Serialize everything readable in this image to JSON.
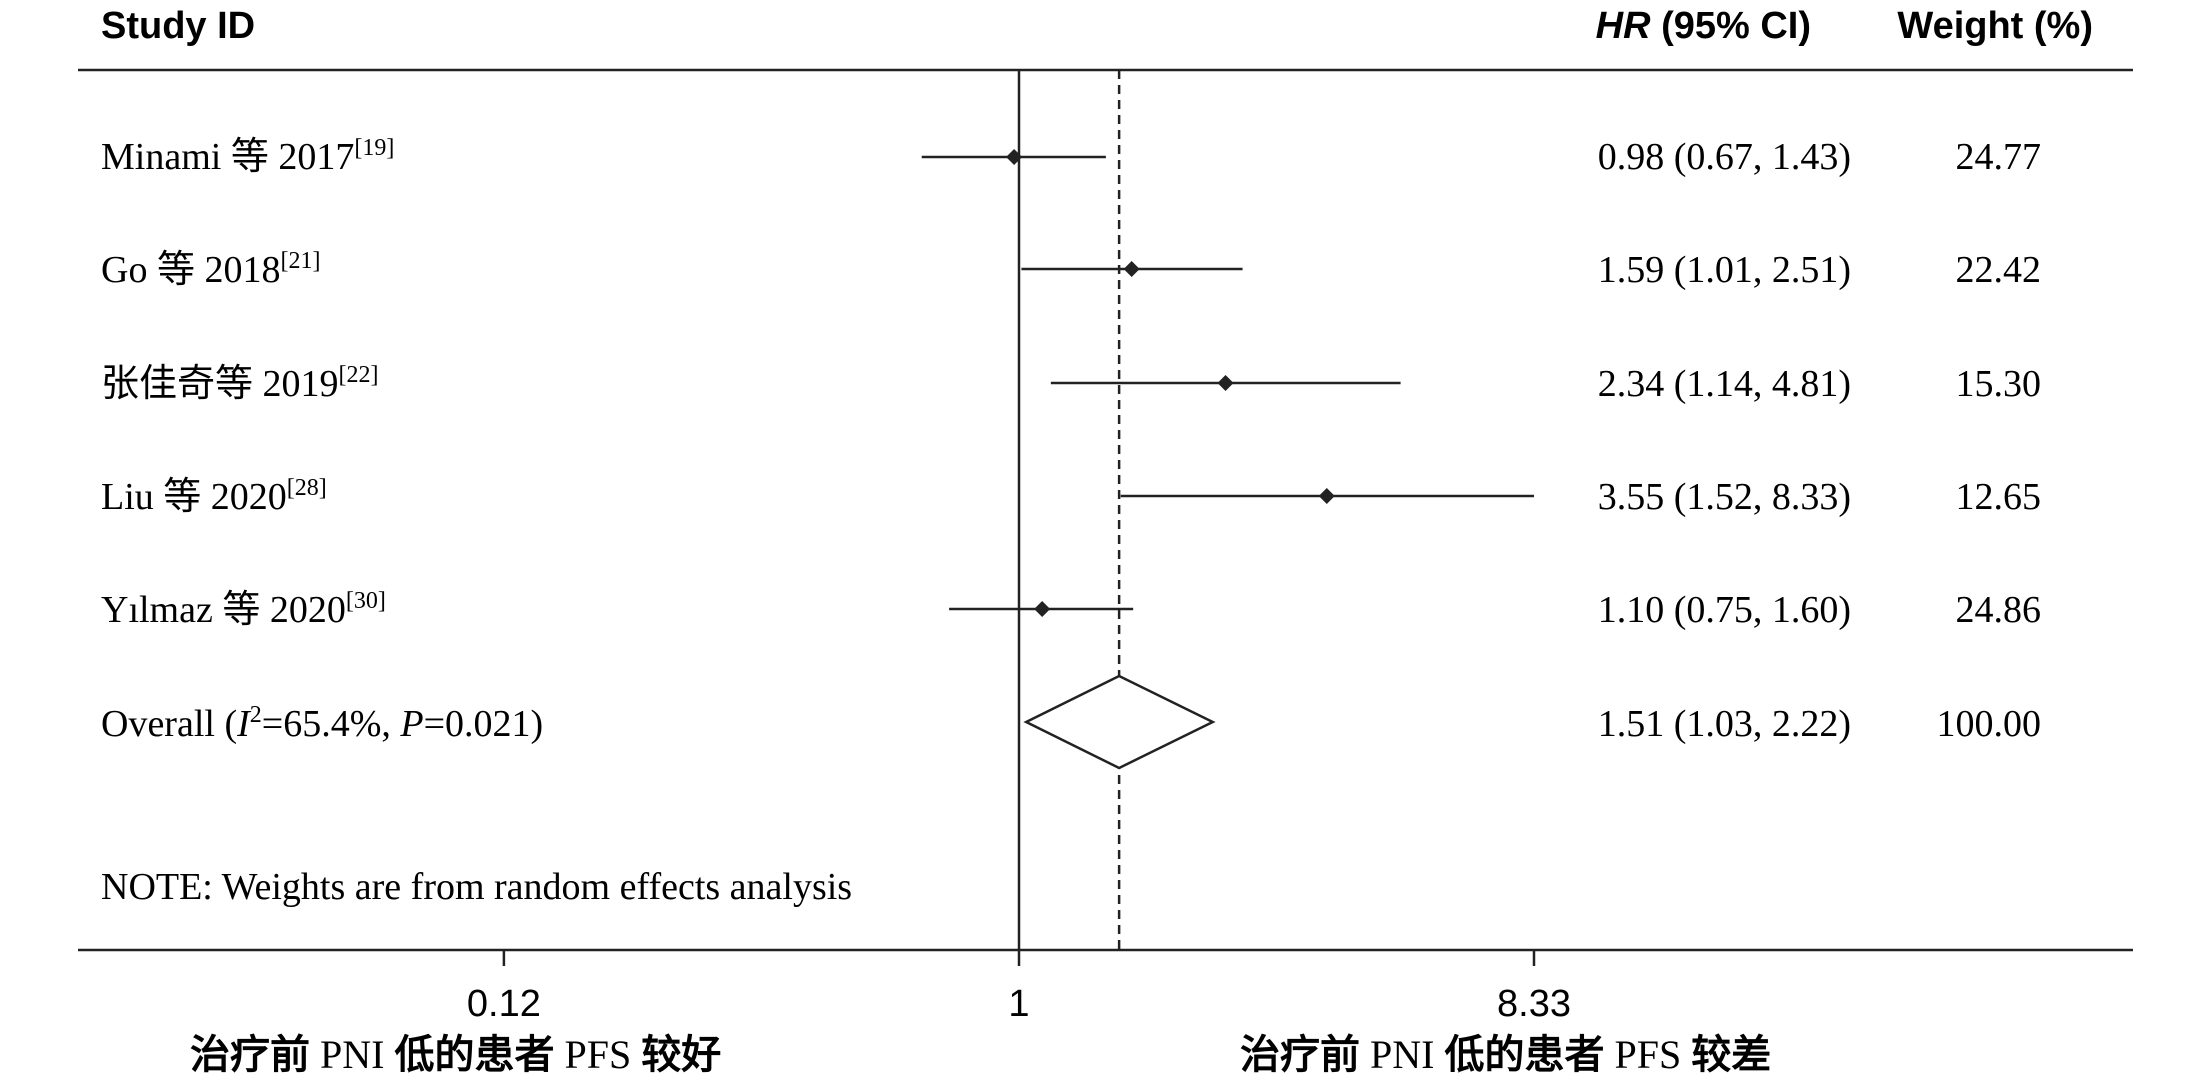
{
  "chart_data": {
    "type": "forest",
    "x_scale": "log",
    "x_ticks": [
      0.12,
      1,
      8.33
    ],
    "x_tick_labels": [
      "0.12",
      "1",
      "8.33"
    ],
    "null_line": 1,
    "overall_line": 1.51,
    "columns": {
      "study": "Study ID",
      "effect_italic": "HR",
      "effect_rest": " (95% CI)",
      "weight": "Weight (%)"
    },
    "studies": [
      {
        "author": "Minami",
        "conj": "等",
        "year": "2017",
        "ref": "[19]",
        "hr": 0.98,
        "lo": 0.67,
        "hi": 1.43,
        "ci_text": "0.98 (0.67, 1.43)",
        "weight": "24.77"
      },
      {
        "author": "Go",
        "conj": "等",
        "year": "2018",
        "ref": "[21]",
        "hr": 1.59,
        "lo": 1.01,
        "hi": 2.51,
        "ci_text": "1.59 (1.01, 2.51)",
        "weight": "22.42"
      },
      {
        "author": "张佳奇",
        "conj": "等",
        "year": "2019",
        "ref": "[22]",
        "hr": 2.34,
        "lo": 1.14,
        "hi": 4.81,
        "ci_text": "2.34 (1.14, 4.81)",
        "weight": "15.30"
      },
      {
        "author": "Liu",
        "conj": "等",
        "year": "2020",
        "ref": "[28]",
        "hr": 3.55,
        "lo": 1.52,
        "hi": 8.33,
        "ci_text": "3.55 (1.52, 8.33)",
        "weight": "12.65"
      },
      {
        "author": "Yılmaz",
        "conj": "等",
        "year": "2020",
        "ref": "[30]",
        "hr": 1.1,
        "lo": 0.75,
        "hi": 1.6,
        "ci_text": "1.10 (0.75, 1.60)",
        "weight": "24.86"
      }
    ],
    "overall": {
      "label": "Overall",
      "i2_symbol": "I",
      "i2_exp": "2",
      "i2_value": "=65.4%,",
      "p_symbol": "P",
      "p_value": "=0.021)",
      "hr": 1.51,
      "lo": 1.03,
      "hi": 2.22,
      "ci_text": "1.51 (1.03, 2.22)",
      "weight": "100.00"
    },
    "note": "NOTE: Weights are from random effects analysis",
    "favours_left": {
      "a": "治疗前",
      "b": " PNI ",
      "c": "低的患者",
      "d": " PFS ",
      "e": "较好"
    },
    "favours_right": {
      "a": "治疗前",
      "b": " PNI ",
      "c": "低的患者",
      "d": " PFS ",
      "e": "较差"
    }
  }
}
